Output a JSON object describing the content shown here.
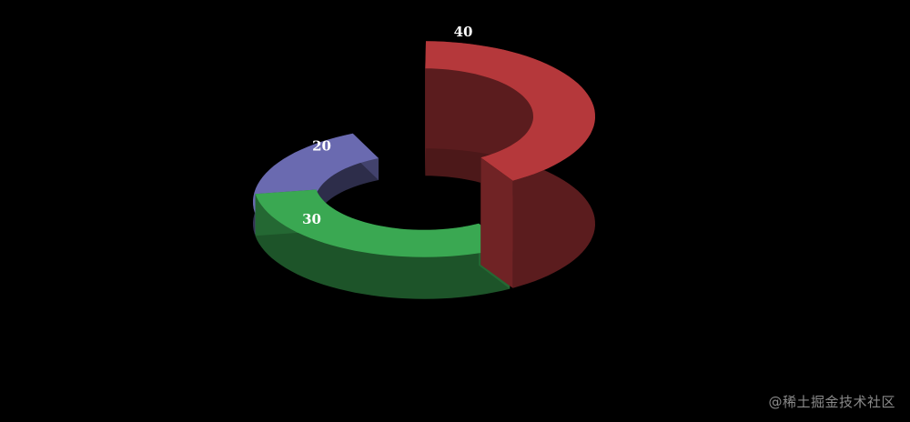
{
  "chart_data": {
    "type": "pie",
    "style": "3d-donut",
    "categories": [
      "40",
      "30",
      "20"
    ],
    "values": [
      40,
      30,
      20
    ],
    "data_labels": [
      "40",
      "30",
      "20"
    ],
    "colors": [
      "#b5383b",
      "#3aa852",
      "#6a6ab0"
    ],
    "legend": "none",
    "grid": false
  },
  "watermark": "@稀土掘金技术社区"
}
